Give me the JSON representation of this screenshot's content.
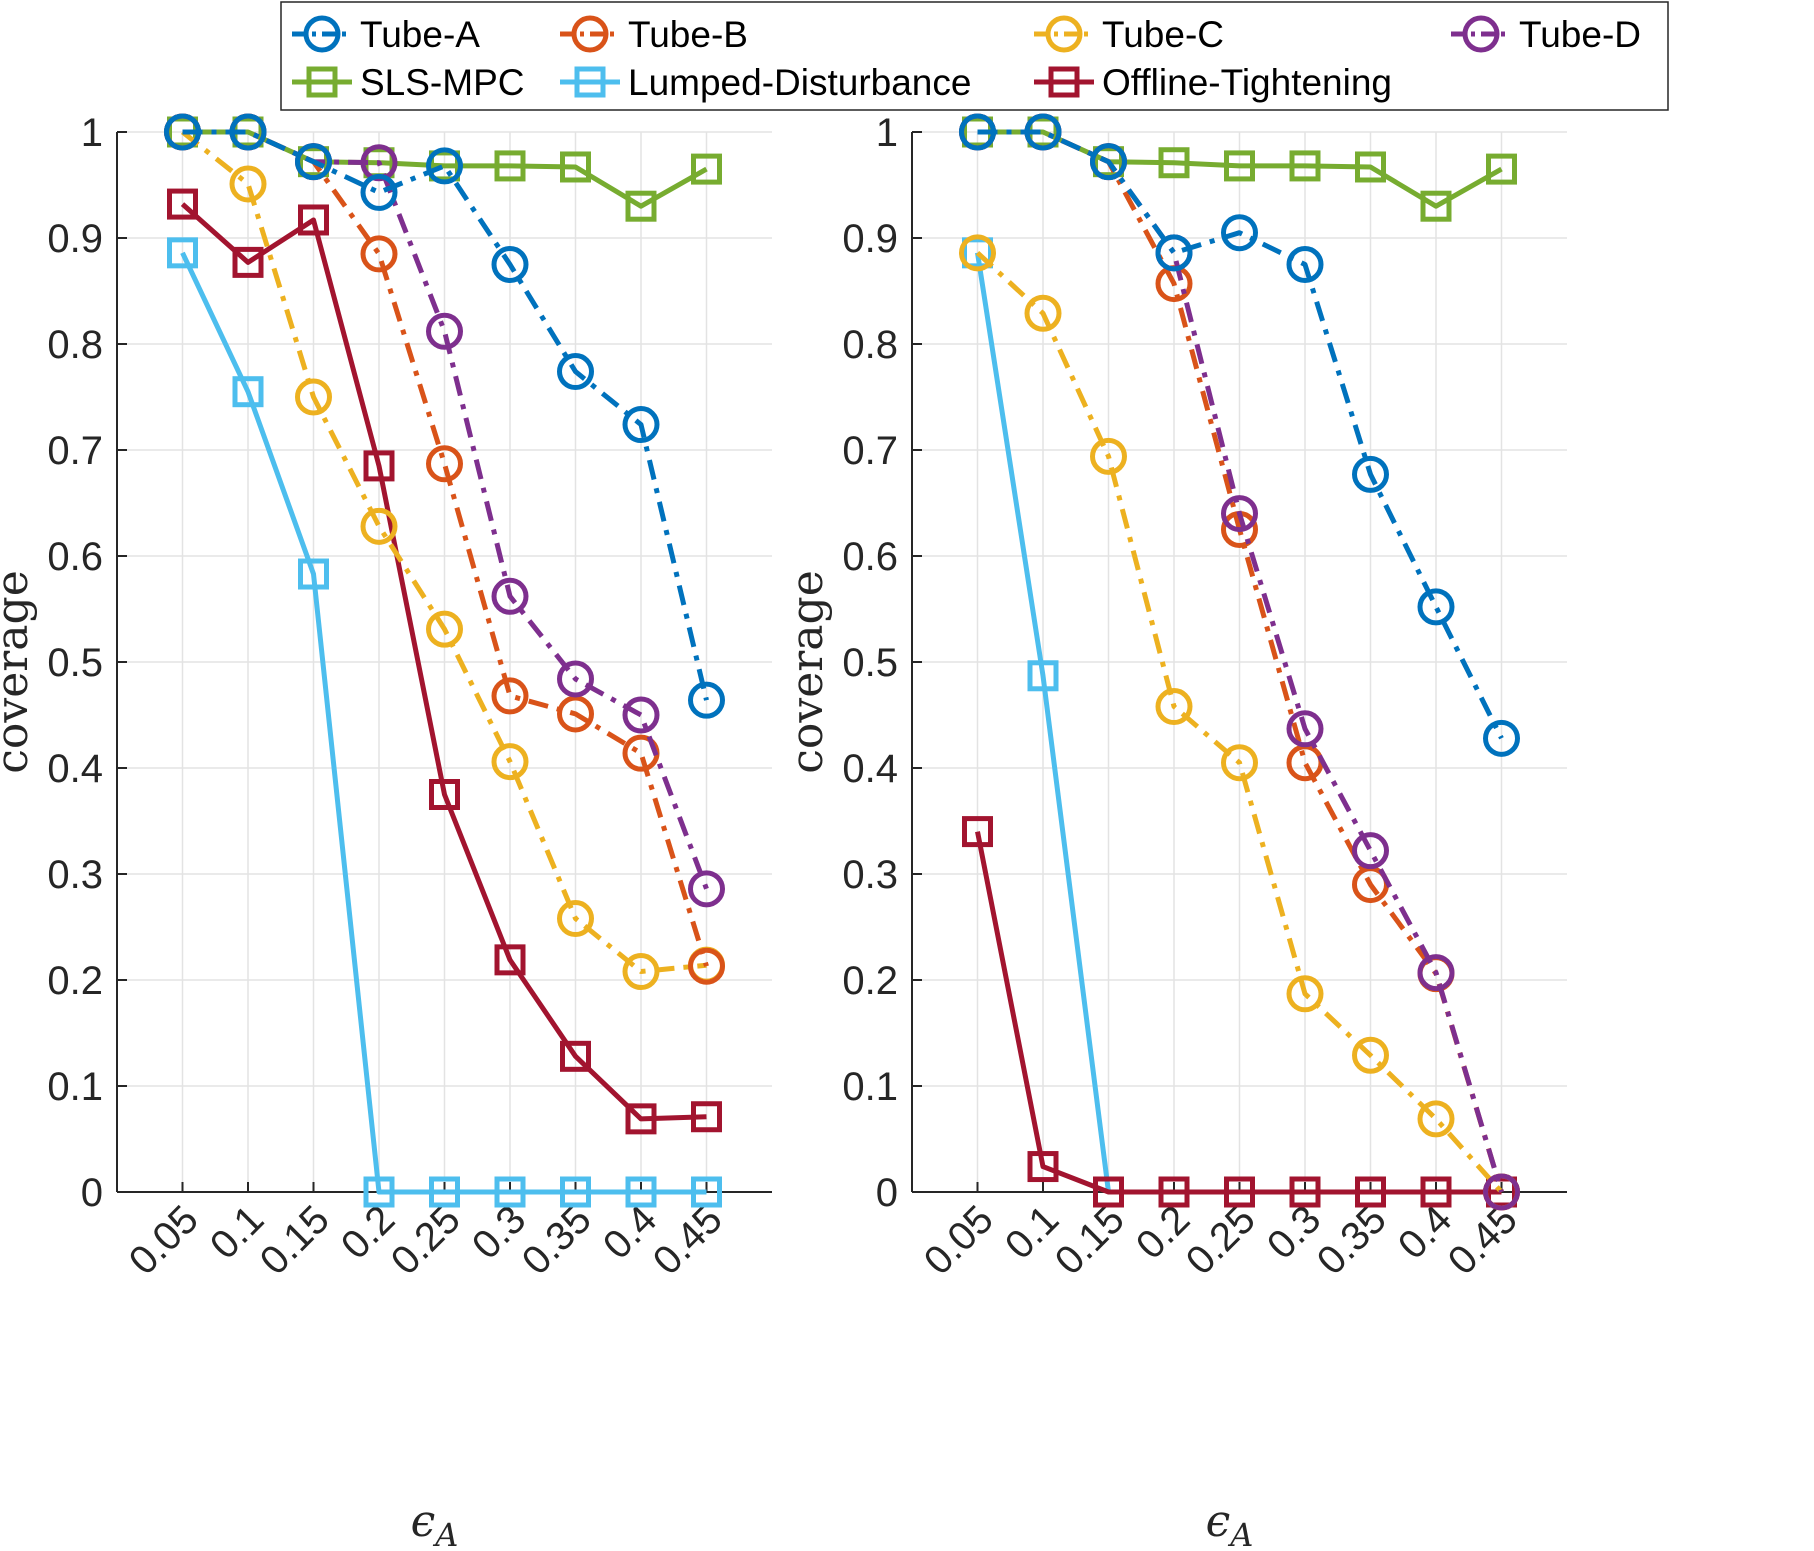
{
  "legend": {
    "position": "top-outside",
    "entries": [
      {
        "name": "Tube-A",
        "color": "#0072BD",
        "marker": "circle",
        "dash": "dashdot"
      },
      {
        "name": "Tube-B",
        "color": "#D95319",
        "marker": "circle",
        "dash": "dashdot"
      },
      {
        "name": "Tube-C",
        "color": "#EDB120",
        "marker": "circle",
        "dash": "dashdot"
      },
      {
        "name": "Tube-D",
        "color": "#7E2F8E",
        "marker": "circle",
        "dash": "dashdot"
      },
      {
        "name": "SLS-MPC",
        "color": "#77AC30",
        "marker": "square",
        "dash": "solid"
      },
      {
        "name": "Lumped-Disturbance",
        "color": "#4DBEEE",
        "marker": "square",
        "dash": "solid"
      },
      {
        "name": "Offline-Tightening",
        "color": "#A2142F",
        "marker": "square",
        "dash": "solid"
      }
    ]
  },
  "chart_data": [
    {
      "type": "line",
      "xlabel": "ϵ",
      "xlabel_subscript": "A",
      "ylabel": "coverage",
      "x": [
        0.05,
        0.1,
        0.15,
        0.2,
        0.25,
        0.3,
        0.35,
        0.4,
        0.45
      ],
      "x_tick_labels": [
        "0.05",
        "0.1",
        "0.15",
        "0.2",
        "0.25",
        "0.3",
        "0.35",
        "0.4",
        "0.45"
      ],
      "ylim": [
        0,
        1
      ],
      "y_tick_labels": [
        "0",
        "0.1",
        "0.2",
        "0.3",
        "0.4",
        "0.5",
        "0.6",
        "0.7",
        "0.8",
        "0.9",
        "1"
      ],
      "grid": true,
      "series": [
        {
          "name": "SLS-MPC",
          "values": [
            1.0,
            1.0,
            0.972,
            0.971,
            0.968,
            0.968,
            0.967,
            0.93,
            0.965
          ]
        },
        {
          "name": "Lumped-Disturbance",
          "values": [
            0.886,
            0.755,
            0.583,
            0.0,
            0.0,
            0.0,
            0.0,
            0.0,
            0.0
          ]
        },
        {
          "name": "Offline-Tightening",
          "values": [
            0.932,
            0.877,
            0.917,
            0.685,
            0.375,
            0.219,
            0.128,
            0.069,
            0.071
          ]
        },
        {
          "name": "Tube-C",
          "values": [
            1.0,
            0.951,
            0.75,
            0.628,
            0.531,
            0.406,
            0.258,
            0.208,
            0.214
          ]
        },
        {
          "name": "Tube-B",
          "values": [
            1.0,
            1.0,
            0.972,
            0.885,
            0.687,
            0.468,
            0.451,
            0.414,
            0.213
          ]
        },
        {
          "name": "Tube-D",
          "values": [
            1.0,
            1.0,
            0.972,
            0.971,
            0.812,
            0.562,
            0.484,
            0.45,
            0.286
          ]
        },
        {
          "name": "Tube-A",
          "values": [
            1.0,
            1.0,
            0.972,
            0.943,
            0.968,
            0.875,
            0.774,
            0.724,
            0.464
          ]
        }
      ]
    },
    {
      "type": "line",
      "xlabel": "ϵ",
      "xlabel_subscript": "A",
      "ylabel": "coverage",
      "x": [
        0.05,
        0.1,
        0.15,
        0.2,
        0.25,
        0.3,
        0.35,
        0.4,
        0.45
      ],
      "x_tick_labels": [
        "0.05",
        "0.1",
        "0.15",
        "0.2",
        "0.25",
        "0.3",
        "0.35",
        "0.4",
        "0.45"
      ],
      "ylim": [
        0,
        1
      ],
      "y_tick_labels": [
        "0",
        "0.1",
        "0.2",
        "0.3",
        "0.4",
        "0.5",
        "0.6",
        "0.7",
        "0.8",
        "0.9",
        "1"
      ],
      "grid": true,
      "series": [
        {
          "name": "SLS-MPC",
          "values": [
            1.0,
            1.0,
            0.972,
            0.971,
            0.968,
            0.968,
            0.967,
            0.93,
            0.965
          ]
        },
        {
          "name": "Lumped-Disturbance",
          "values": [
            0.886,
            0.487,
            0.0,
            null,
            null,
            null,
            null,
            null,
            null
          ]
        },
        {
          "name": "Offline-Tightening",
          "values": [
            0.34,
            0.024,
            0.0,
            0.0,
            0.0,
            0.0,
            0.0,
            0.0,
            0.0
          ]
        },
        {
          "name": "Tube-C",
          "values": [
            0.886,
            0.829,
            0.694,
            0.458,
            0.405,
            0.187,
            0.129,
            0.069,
            0.0
          ]
        },
        {
          "name": "Tube-B",
          "values": [
            1.0,
            1.0,
            0.972,
            0.857,
            0.625,
            0.405,
            0.29,
            0.206,
            0.0
          ]
        },
        {
          "name": "Tube-D",
          "values": [
            1.0,
            1.0,
            0.972,
            0.886,
            0.64,
            0.437,
            0.322,
            0.207,
            0.0
          ]
        },
        {
          "name": "Tube-A",
          "values": [
            1.0,
            1.0,
            0.972,
            0.886,
            0.905,
            0.875,
            0.677,
            0.552,
            0.428
          ]
        }
      ]
    }
  ]
}
